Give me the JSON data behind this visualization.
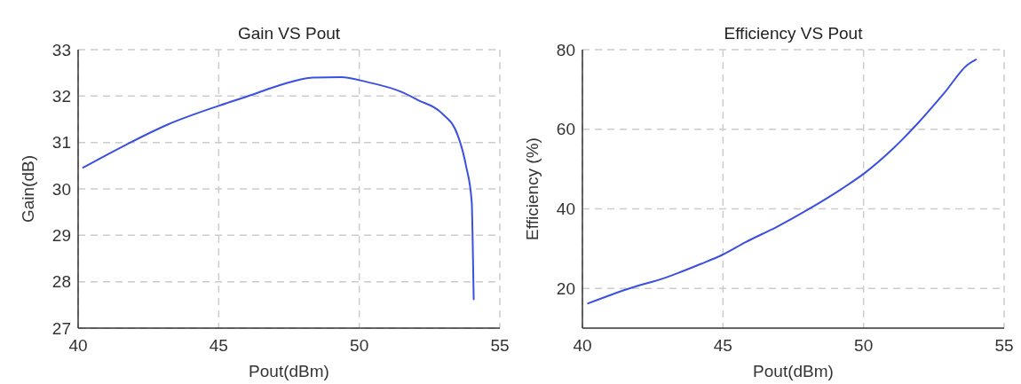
{
  "chart_data": [
    {
      "type": "line",
      "title": "Gain VS Pout",
      "xlabel": "Pout(dBm)",
      "ylabel": "Gain(dB)",
      "xlim": [
        40,
        55
      ],
      "ylim": [
        27,
        33
      ],
      "xticks": [
        40,
        45,
        50,
        55
      ],
      "yticks": [
        27,
        28,
        29,
        30,
        31,
        32,
        33
      ],
      "grid": true,
      "color": "#3b4fe0",
      "x": [
        40.18,
        41.7,
        43.2,
        45.0,
        46.2,
        47.2,
        48.35,
        49.35,
        50.3,
        51.5,
        52.1,
        52.9,
        53.5,
        53.8,
        54.0,
        54.03,
        54.07
      ],
      "values": [
        30.46,
        30.95,
        31.39,
        31.79,
        32.03,
        32.24,
        32.4,
        32.41,
        32.3,
        32.09,
        31.91,
        31.65,
        31.16,
        30.49,
        29.72,
        29.0,
        27.62
      ]
    },
    {
      "type": "line",
      "title": "Efficiency  VS  Pout",
      "xlabel": "Pout(dBm)",
      "ylabel": "Efficiency (%)",
      "xlim": [
        40,
        55
      ],
      "ylim": [
        10,
        80
      ],
      "xticks": [
        40,
        45,
        50,
        55
      ],
      "yticks": [
        20,
        40,
        60,
        80
      ],
      "grid": true,
      "color": "#3b4fe0",
      "x": [
        40.2,
        41.6,
        43.0,
        44.2,
        45.0,
        45.8,
        46.9,
        48.07,
        49.24,
        50.06,
        51.0,
        51.93,
        52.87,
        53.7,
        54.0
      ],
      "values": [
        16.2,
        19.8,
        22.8,
        26.1,
        28.5,
        31.6,
        35.4,
        40.0,
        45.1,
        49.1,
        54.8,
        61.5,
        69.1,
        76.2,
        77.5
      ]
    }
  ]
}
